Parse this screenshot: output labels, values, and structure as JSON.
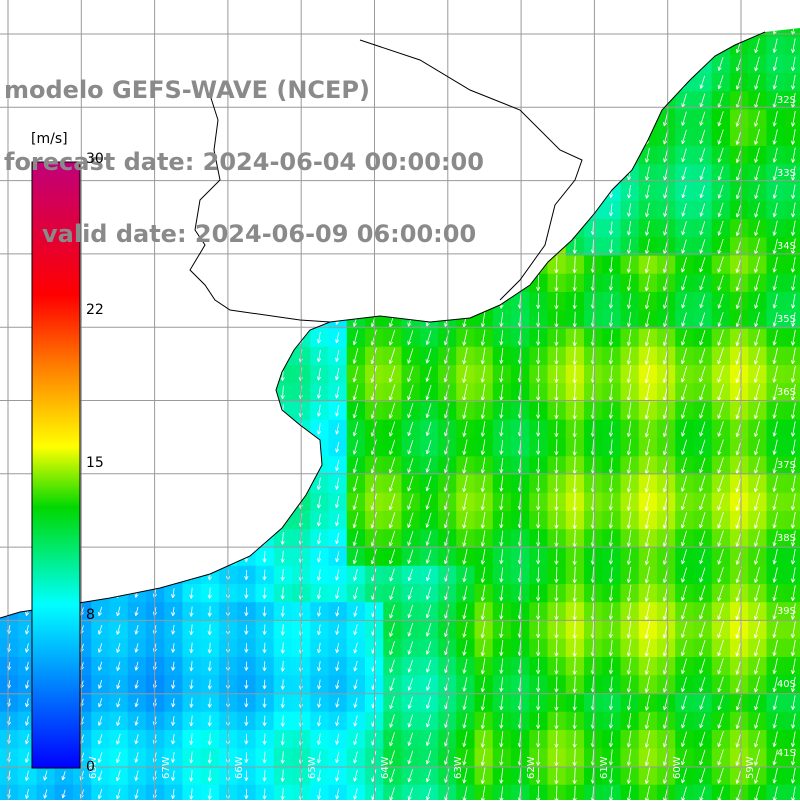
{
  "title": {
    "model_line": "modelo GEFS-WAVE (NCEP)",
    "forecast_line": "forecast date: 2024-06-04 00:00:00",
    "valid_line": "valid date: 2024-06-09 06:00:00"
  },
  "colorbar": {
    "unit": "[m/s]",
    "range": [
      0,
      30
    ],
    "ticks": [
      "0",
      "8",
      "15",
      "22",
      "30"
    ],
    "tick_values": [
      0,
      8,
      15,
      22,
      30
    ],
    "colors": [
      "#0000ff",
      "#00ffff",
      "#00d800",
      "#ffff00",
      "#ff8000",
      "#ff0000",
      "#c0007a"
    ]
  },
  "lat_labels": [
    "32S",
    "33S",
    "34S",
    "35S",
    "36S",
    "37S",
    "38S",
    "39S",
    "40S",
    "41S"
  ],
  "lon_labels": [
    "68W",
    "67W",
    "66W",
    "65W",
    "64W",
    "63W",
    "62W",
    "61W",
    "60W",
    "59W"
  ],
  "field": {
    "description_values_ms": {
      "southwest_shelf": 4,
      "coastal_band": 9,
      "offshore_central": 13,
      "offshore_east": 14
    }
  },
  "colors": {
    "land": "#ffffff",
    "grid": "#9a9a9a",
    "coast": "#000000",
    "arrow": "#ffffff",
    "title_text": "#8a8a8a"
  }
}
